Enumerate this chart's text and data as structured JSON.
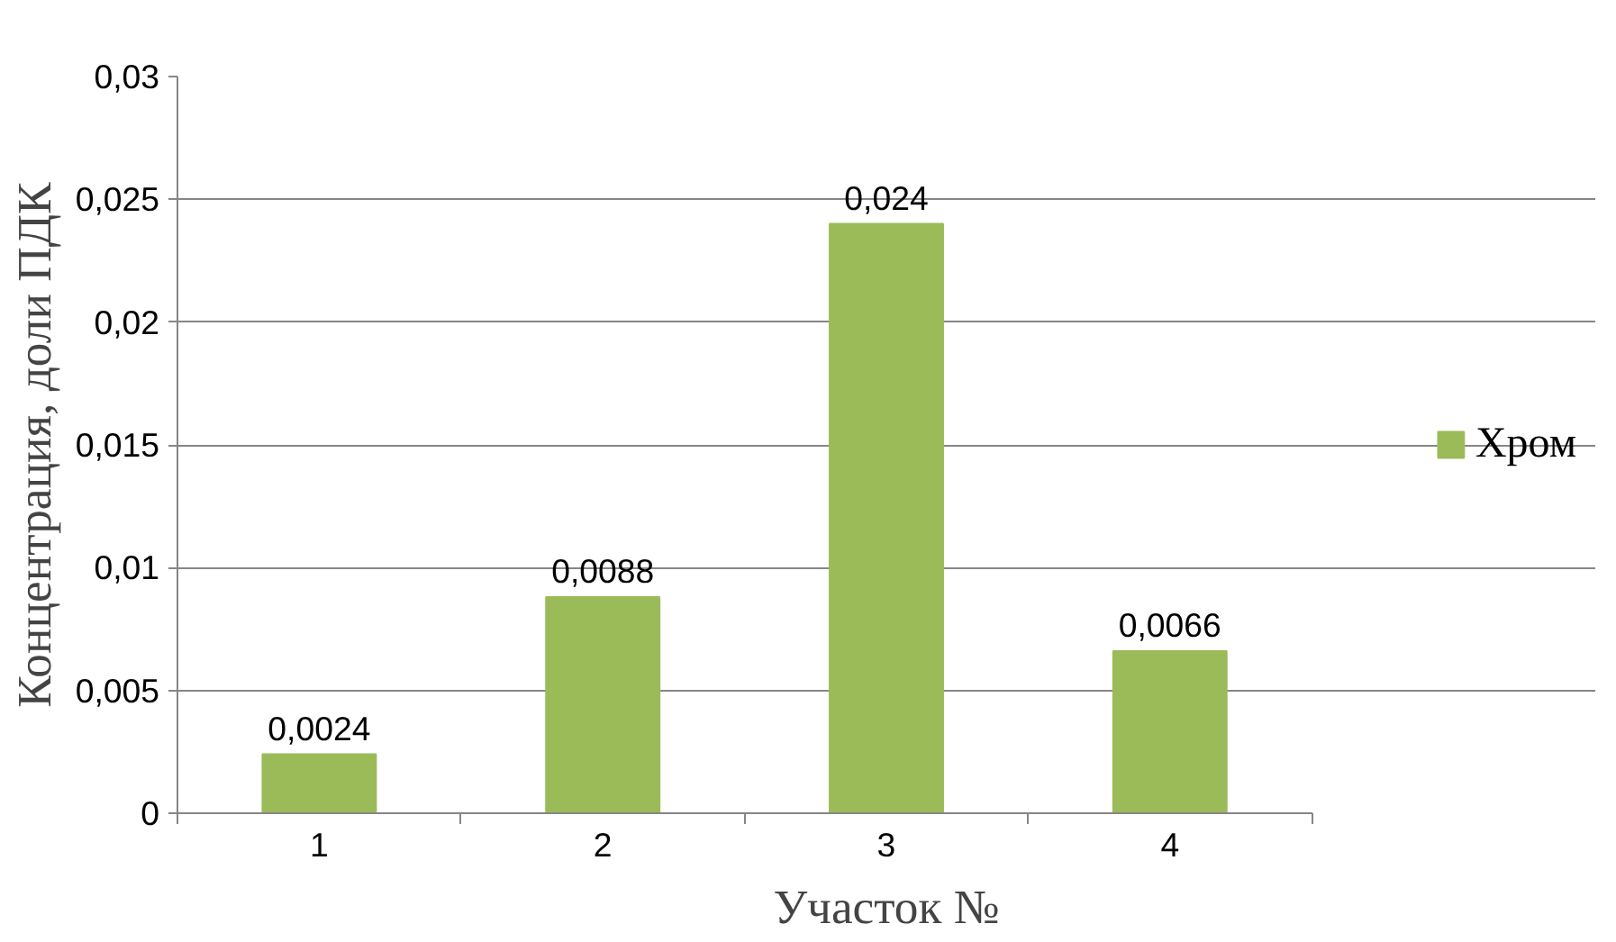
{
  "chart_data": {
    "type": "bar",
    "xlabel": "Участок №",
    "ylabel": "Концентрация, доли ПДК",
    "categories": [
      "1",
      "2",
      "3",
      "4"
    ],
    "series": [
      {
        "name": "Хром",
        "color": "#9bbb59",
        "values": [
          0.0024,
          0.0088,
          0.024,
          0.0066
        ],
        "value_labels": [
          "0,0024",
          "0,0088",
          "0,024",
          "0,0066"
        ]
      }
    ],
    "ylim": [
      0,
      0.03
    ],
    "yticks": [
      {
        "value": 0,
        "label": "0"
      },
      {
        "value": 0.005,
        "label": "0,005"
      },
      {
        "value": 0.01,
        "label": "0,01"
      },
      {
        "value": 0.015,
        "label": "0,015"
      },
      {
        "value": 0.02,
        "label": "0,02"
      },
      {
        "value": 0.025,
        "label": "0,025"
      },
      {
        "value": 0.03,
        "label": "0,03"
      }
    ],
    "grid": "y",
    "legend": "right"
  }
}
